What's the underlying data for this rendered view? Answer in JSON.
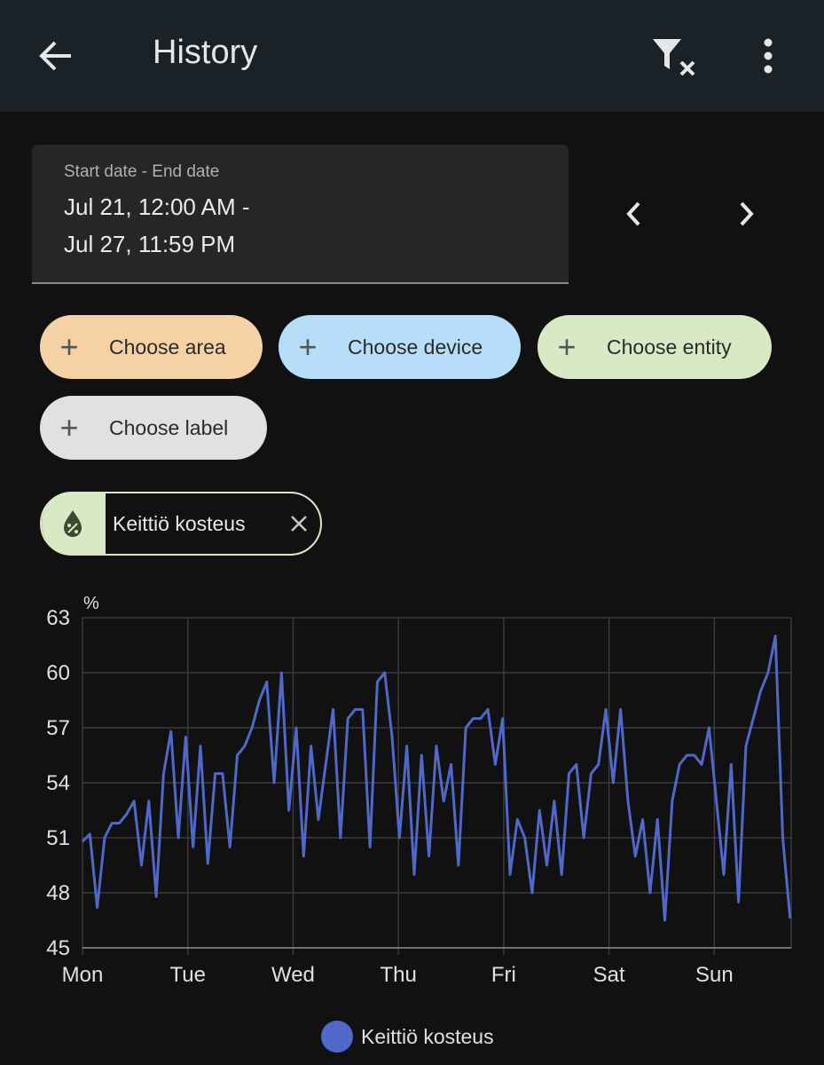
{
  "header": {
    "title": "History"
  },
  "date_range": {
    "label": "Start date - End date",
    "start": "Jul 21, 12:00 AM -",
    "end": "Jul 27, 11:59 PM"
  },
  "chips": [
    "Choose area",
    "Choose device",
    "Choose entity",
    "Choose label"
  ],
  "selected_entity": "Keittiö kosteus",
  "chart_data": {
    "type": "line",
    "y_label": "%",
    "grid": true,
    "xlim": [
      0,
      6.73
    ],
    "ylim": [
      45,
      63
    ],
    "xticks": [
      {
        "value": 0,
        "label": "Mon"
      },
      {
        "value": 1,
        "label": "Tue"
      },
      {
        "value": 2,
        "label": "Wed"
      },
      {
        "value": 3,
        "label": "Thu"
      },
      {
        "value": 4,
        "label": "Fri"
      },
      {
        "value": 5,
        "label": "Sat"
      },
      {
        "value": 6,
        "label": "Sun"
      }
    ],
    "yticks": [
      45,
      48,
      51,
      54,
      57,
      60,
      63
    ],
    "x": [
      0,
      0.07,
      0.14,
      0.21,
      0.28,
      0.35,
      0.42,
      0.49,
      0.56,
      0.63,
      0.7,
      0.77,
      0.84,
      0.91,
      0.98,
      1.05,
      1.12,
      1.19,
      1.26,
      1.33,
      1.4,
      1.47,
      1.54,
      1.61,
      1.68,
      1.75,
      1.82,
      1.89,
      1.96,
      2.03,
      2.1,
      2.17,
      2.24,
      2.31,
      2.38,
      2.45,
      2.52,
      2.59,
      2.66,
      2.73,
      2.8,
      2.87,
      2.94,
      3.01,
      3.08,
      3.15,
      3.22,
      3.29,
      3.36,
      3.43,
      3.5,
      3.57,
      3.64,
      3.71,
      3.78,
      3.85,
      3.92,
      3.99,
      4.06,
      4.13,
      4.2,
      4.27,
      4.34,
      4.41,
      4.48,
      4.55,
      4.62,
      4.69,
      4.76,
      4.83,
      4.9,
      4.97,
      5.04,
      5.11,
      5.18,
      5.25,
      5.32,
      5.39,
      5.46,
      5.53,
      5.6,
      5.67,
      5.74,
      5.81,
      5.88,
      5.95,
      6.02,
      6.09,
      6.16,
      6.23,
      6.3,
      6.37,
      6.44,
      6.51,
      6.58,
      6.65,
      6.72
    ],
    "series": [
      {
        "name": "Keittiö kosteus",
        "color": "#4f68c9",
        "values": [
          50.8,
          51.2,
          47.2,
          51,
          51.8,
          51.8,
          52.3,
          53,
          49.5,
          53,
          47.8,
          54.5,
          56.8,
          51,
          56.5,
          50.5,
          56,
          49.6,
          54.5,
          54.5,
          50.5,
          55.5,
          56,
          57,
          58.5,
          59.5,
          54,
          60,
          52.5,
          57,
          50,
          56,
          52,
          55,
          58,
          51,
          57.5,
          58,
          58,
          50.5,
          59.5,
          60,
          56.5,
          51,
          56,
          49,
          55.5,
          50,
          56,
          53,
          55,
          49.5,
          57,
          57.5,
          57.5,
          58,
          55,
          57.5,
          49,
          52,
          51,
          48,
          52.5,
          49.5,
          53,
          49,
          54.5,
          55,
          51,
          54.5,
          55,
          58,
          54,
          58,
          53,
          50,
          52,
          48,
          52,
          46.5,
          53,
          55,
          55.5,
          55.5,
          55,
          57,
          53,
          49,
          55,
          47.5,
          56,
          57.5,
          59,
          60,
          62,
          51,
          46.6
        ]
      }
    ]
  }
}
